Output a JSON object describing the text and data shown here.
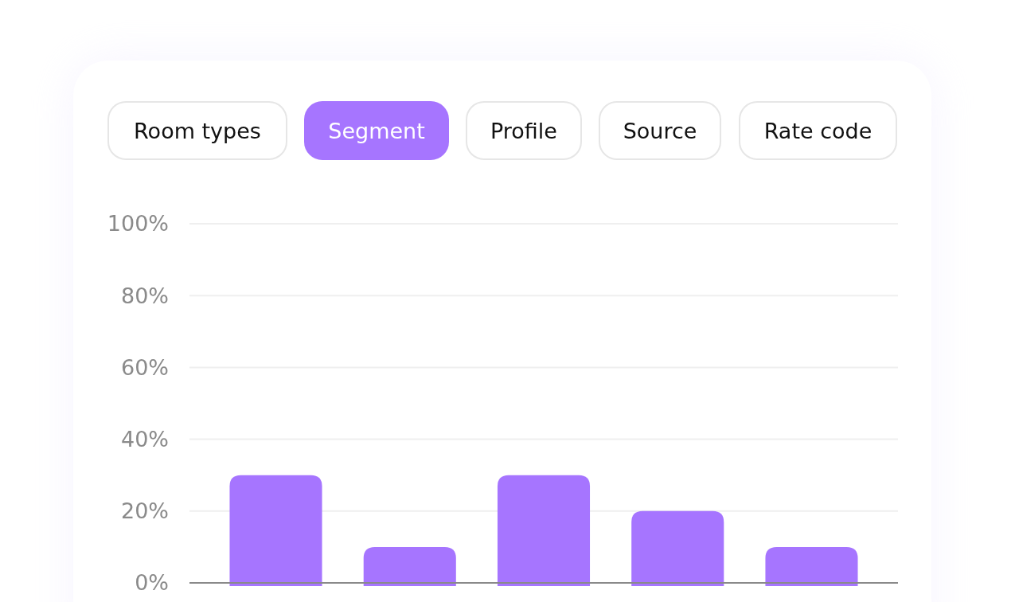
{
  "chart_data": {
    "type": "bar",
    "categories": [
      null,
      null,
      null,
      null,
      null
    ],
    "values": [
      30,
      10,
      30,
      20,
      10
    ],
    "color": "#a675ff",
    "ylim": [
      0,
      100
    ],
    "yticks": [
      {
        "value": 0,
        "label": "0%"
      },
      {
        "value": 20,
        "label": "20%"
      },
      {
        "value": 40,
        "label": "40%"
      },
      {
        "value": 60,
        "label": "60%"
      },
      {
        "value": 80,
        "label": "80%"
      },
      {
        "value": 100,
        "label": "100%"
      }
    ],
    "grid": "y",
    "annotations": [
      "Room types",
      "Segment",
      "Profile",
      "Source",
      "Rate code"
    ]
  }
}
